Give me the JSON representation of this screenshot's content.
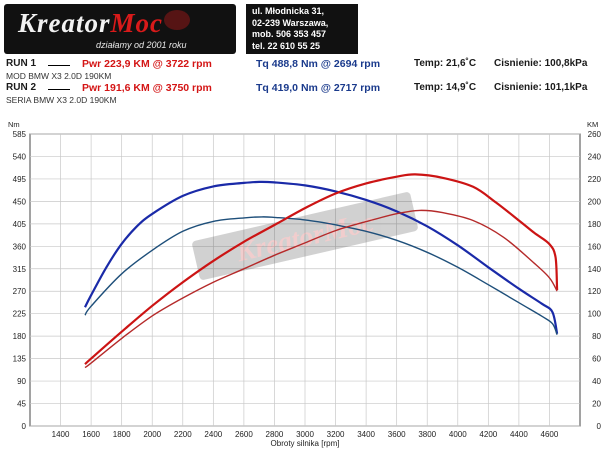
{
  "header": {
    "logo_part1": "Kreator",
    "logo_part2": "Moc",
    "logo_tagline": "działamy od 2001 roku",
    "contact_lines": [
      "ul. Młodnicka 31,",
      "02-239  Warszawa,",
      "mob.  506 353 457",
      "tel.  22 610 55 25"
    ]
  },
  "runs": [
    {
      "label": "RUN 1",
      "pwr": "Pwr  223,9 KM @ 3722 rpm",
      "tq": "Tq 488,8 Nm @ 2694 rpm",
      "temp": "Temp: 21,6˚C",
      "pressure": "Cisnienie: 100,8kPa",
      "desc": "MOD BMW X3 2.0D 190KM"
    },
    {
      "label": "RUN 2",
      "pwr": "Pwr  191,6 KM @ 3750 rpm",
      "tq": "Tq 419,0 Nm @ 2717 rpm",
      "temp": "Temp: 14,9˚C",
      "pressure": "Cisnienie: 101,1kPa",
      "desc": "SERIA BMW X3 2.0D 190KM"
    }
  ],
  "colors": {
    "power_mod": "#cc1414",
    "power_stock": "#b52a2a",
    "torque_mod": "#1a2aa8",
    "torque_stock": "#1e4f7a",
    "watermark": "#c22020"
  },
  "chart_data": {
    "type": "line",
    "xlabel": "Obroty silnika [rpm]",
    "ylabel_left": "Nm",
    "ylabel_right": "KM",
    "xlim": [
      1200,
      4800
    ],
    "x_ticks": [
      1400,
      1600,
      1800,
      2000,
      2200,
      2400,
      2600,
      2800,
      3000,
      3200,
      3400,
      3600,
      3800,
      4000,
      4200,
      4400,
      4600
    ],
    "ylim_left": [
      0,
      585
    ],
    "y_ticks_left": [
      0,
      45,
      90,
      135,
      180,
      225,
      270,
      315,
      360,
      405,
      450,
      495,
      540,
      585
    ],
    "ylim_right": [
      0,
      260
    ],
    "y_ticks_right": [
      0,
      20,
      40,
      60,
      80,
      100,
      120,
      140,
      160,
      180,
      200,
      220,
      240,
      260
    ],
    "grid": true,
    "watermark": "KreatorMoc",
    "series": [
      {
        "axis": "left",
        "color_key": "torque_mod",
        "width": 2.2,
        "x": [
          1560,
          1600,
          1700,
          1800,
          1900,
          2000,
          2200,
          2400,
          2600,
          2700,
          2800,
          3000,
          3200,
          3400,
          3600,
          3800,
          4000,
          4200,
          4400,
          4550,
          4620,
          4650
        ],
        "y": [
          238,
          262,
          318,
          365,
          400,
          425,
          461,
          480,
          487,
          489,
          488,
          482,
          470,
          453,
          430,
          400,
          362,
          318,
          275,
          245,
          228,
          185
        ]
      },
      {
        "axis": "left",
        "color_key": "torque_stock",
        "width": 1.4,
        "x": [
          1560,
          1600,
          1800,
          2000,
          2200,
          2400,
          2600,
          2717,
          2800,
          3000,
          3200,
          3400,
          3600,
          3800,
          4000,
          4200,
          4400,
          4550,
          4620,
          4650
        ],
        "y": [
          222,
          240,
          305,
          352,
          390,
          410,
          417,
          419,
          418,
          413,
          403,
          390,
          372,
          348,
          318,
          283,
          247,
          220,
          205,
          183
        ]
      },
      {
        "axis": "right",
        "color_key": "power_mod",
        "width": 2.2,
        "x": [
          1560,
          1600,
          1800,
          2000,
          2200,
          2400,
          2600,
          2800,
          3000,
          3200,
          3400,
          3600,
          3722,
          3900,
          4100,
          4250,
          4400,
          4500,
          4600,
          4640,
          4650
        ],
        "y": [
          55,
          60,
          84,
          107,
          128,
          147,
          164,
          179,
          194,
          207,
          216,
          222,
          224,
          221,
          213,
          199,
          183,
          172,
          162,
          150,
          121
        ]
      },
      {
        "axis": "right",
        "color_key": "power_stock",
        "width": 1.4,
        "x": [
          1560,
          1600,
          1800,
          2000,
          2200,
          2400,
          2600,
          2800,
          3000,
          3200,
          3400,
          3600,
          3750,
          3900,
          4100,
          4300,
          4500,
          4600,
          4650
        ],
        "y": [
          52,
          56,
          78,
          98,
          114,
          128,
          140,
          152,
          163,
          174,
          182,
          189,
          192,
          190,
          183,
          168,
          145,
          132,
          120
        ]
      }
    ]
  }
}
